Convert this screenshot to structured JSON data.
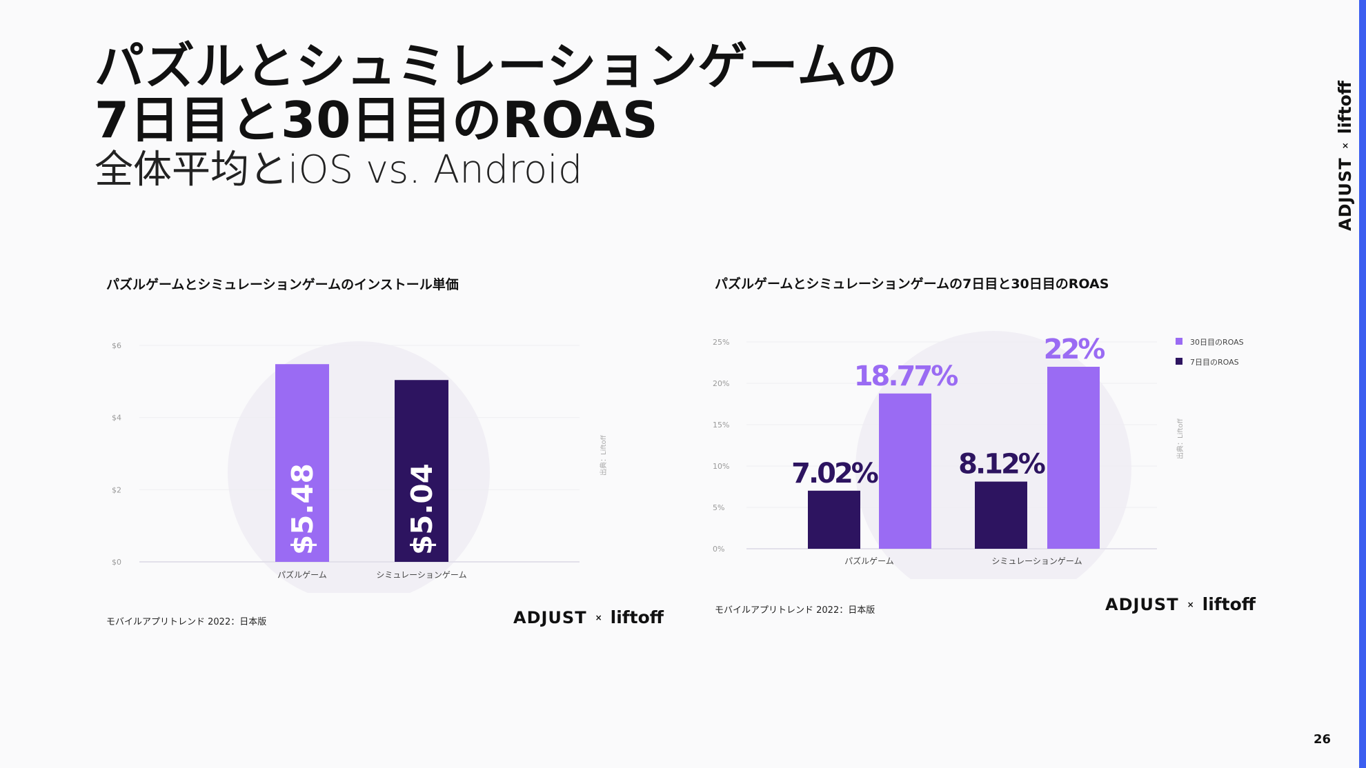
{
  "slide": {
    "title_line1": "パズルとシュミレーションゲームの",
    "title_line2": "7日目と30日目のROAS",
    "subtitle": "全体平均とiOS vs. Android",
    "page_number": "26",
    "brand": {
      "adjust": "ADJUST",
      "x": "×",
      "liftoff": "liftoff"
    }
  },
  "colors": {
    "light_purple": "#9a6bf3",
    "dark_purple": "#2d1460",
    "accent_blue": "#3b5ef0"
  },
  "chart_data": [
    {
      "type": "bar",
      "title": "パズルゲームとシミュレーションゲームのインストール単価",
      "categories": [
        "パズルゲーム",
        "シミュレーションゲーム"
      ],
      "values": [
        5.48,
        5.04
      ],
      "value_labels": [
        "$5.48",
        "$5.04"
      ],
      "bar_colors": [
        "#9a6bf3",
        "#2d1460"
      ],
      "yticks": [
        "$0",
        "$2",
        "$4",
        "$6"
      ],
      "ylim": [
        0,
        6
      ],
      "grid": true,
      "source": "出典：Liftoff",
      "footer": "モバイルアプリトレンド 2022：日本版"
    },
    {
      "type": "bar",
      "title": "パズルゲームとシミュレーションゲームの7日目と30日目のROAS",
      "categories": [
        "パズルゲーム",
        "シミュレーションゲーム"
      ],
      "series": [
        {
          "name": "7日目のROAS",
          "values": [
            7.02,
            8.12
          ],
          "labels": [
            "7.02%",
            "8.12%"
          ],
          "color": "#2d1460"
        },
        {
          "name": "30日目のROAS",
          "values": [
            18.77,
            22
          ],
          "labels": [
            "18.77%",
            "22%"
          ],
          "color": "#9a6bf3"
        }
      ],
      "legend": [
        "30日目のROAS",
        "7日目のROAS"
      ],
      "legend_position": "top-right",
      "yticks": [
        "0%",
        "5%",
        "10%",
        "15%",
        "20%",
        "25%"
      ],
      "ylim": [
        0,
        25
      ],
      "grid": true,
      "source": "出典：Liftoff",
      "footer": "モバイルアプリトレンド 2022：日本版"
    }
  ]
}
